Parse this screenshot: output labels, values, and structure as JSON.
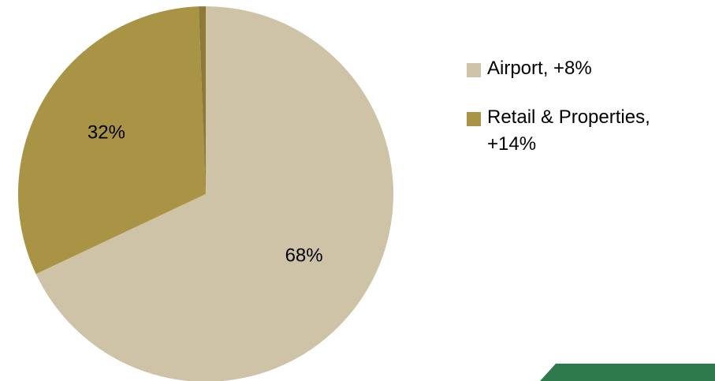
{
  "chart_data": {
    "type": "pie",
    "title": "",
    "start_angle_deg": 0,
    "direction": "clockwise",
    "legend_position": "right",
    "slices": [
      {
        "name": "Airport, +8%",
        "value": 68,
        "label": "68%",
        "color": "#cfc3a7"
      },
      {
        "name": "Retail & Properties, +14%",
        "value": 31.4,
        "label": "32%",
        "color": "#a99445"
      },
      {
        "name": "",
        "value": 0.6,
        "label": "",
        "color": "#8d7a3a"
      }
    ]
  },
  "legend": {
    "items": [
      {
        "label": "Airport, +8%",
        "color": "#cfc3a7"
      },
      {
        "label": "Retail & Properties, +14%",
        "color": "#a99445"
      }
    ]
  },
  "decor": {
    "corner_bar_color": "#2e7a4c"
  }
}
